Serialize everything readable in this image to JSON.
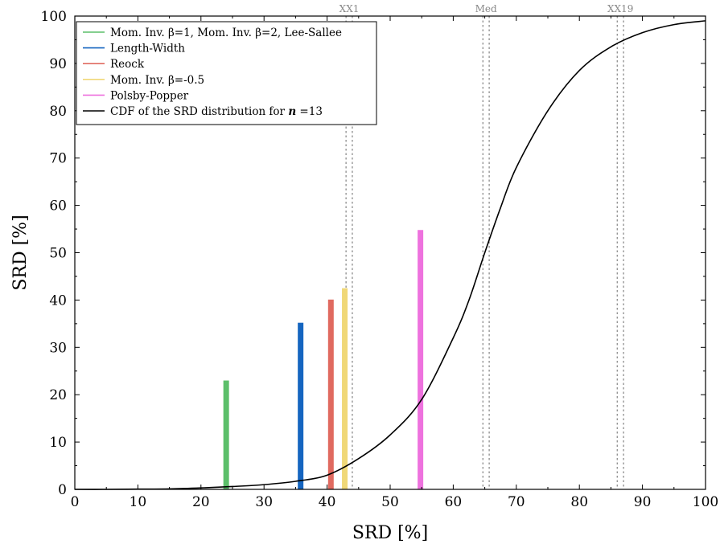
{
  "chart_data": {
    "type": "bar",
    "xlabel": "SRD [%]",
    "ylabel": "SRD [%]",
    "xlim": [
      0,
      100
    ],
    "ylim": [
      0,
      100
    ],
    "x_ticks": [
      0,
      10,
      20,
      30,
      40,
      50,
      60,
      70,
      80,
      90,
      100
    ],
    "y_ticks": [
      0,
      10,
      20,
      30,
      40,
      50,
      60,
      70,
      80,
      90,
      100
    ],
    "grid": false,
    "legend_position": "top-left",
    "bars": [
      {
        "name": "Mom. Inv. β=1, Mom. Inv. β=2, Lee-Sallee",
        "x": 24.0,
        "value": 23.0,
        "color": "#5cbf6a"
      },
      {
        "name": "Length-Width",
        "x": 35.8,
        "value": 35.2,
        "color": "#1565c0"
      },
      {
        "name": "Reock",
        "x": 40.6,
        "value": 40.1,
        "color": "#e06a60"
      },
      {
        "name": "Mom. Inv. β=-0.5",
        "x": 42.8,
        "value": 42.5,
        "color": "#f0d878"
      },
      {
        "name": "Polsby-Popper",
        "x": 54.8,
        "value": 54.8,
        "color": "#ee72de"
      }
    ],
    "cdf_series": {
      "name": "CDF of the SRD distribution for n =13",
      "legend_main": "CDF of the SRD distribution for ",
      "legend_var": "n",
      "legend_value": " =13",
      "color": "#000000",
      "x": [
        0,
        5,
        10,
        15,
        20,
        25,
        30,
        35,
        40,
        45,
        50,
        55,
        60,
        62.5,
        65,
        67.5,
        70,
        75,
        80,
        85,
        90,
        95,
        100
      ],
      "y": [
        0,
        0,
        0.05,
        0.1,
        0.3,
        0.6,
        1.0,
        1.7,
        3.0,
        6.5,
        11.5,
        19.0,
        32.0,
        40.0,
        50.0,
        59.5,
        68.0,
        80.0,
        88.5,
        93.5,
        96.5,
        98.2,
        99.0
      ]
    },
    "reference_lines": [
      {
        "label": "XX1",
        "x": [
          43.0,
          44.0
        ]
      },
      {
        "label": "Med",
        "x": [
          64.7,
          65.7
        ]
      },
      {
        "label": "XX19",
        "x": [
          86.0,
          87.0
        ]
      }
    ]
  }
}
